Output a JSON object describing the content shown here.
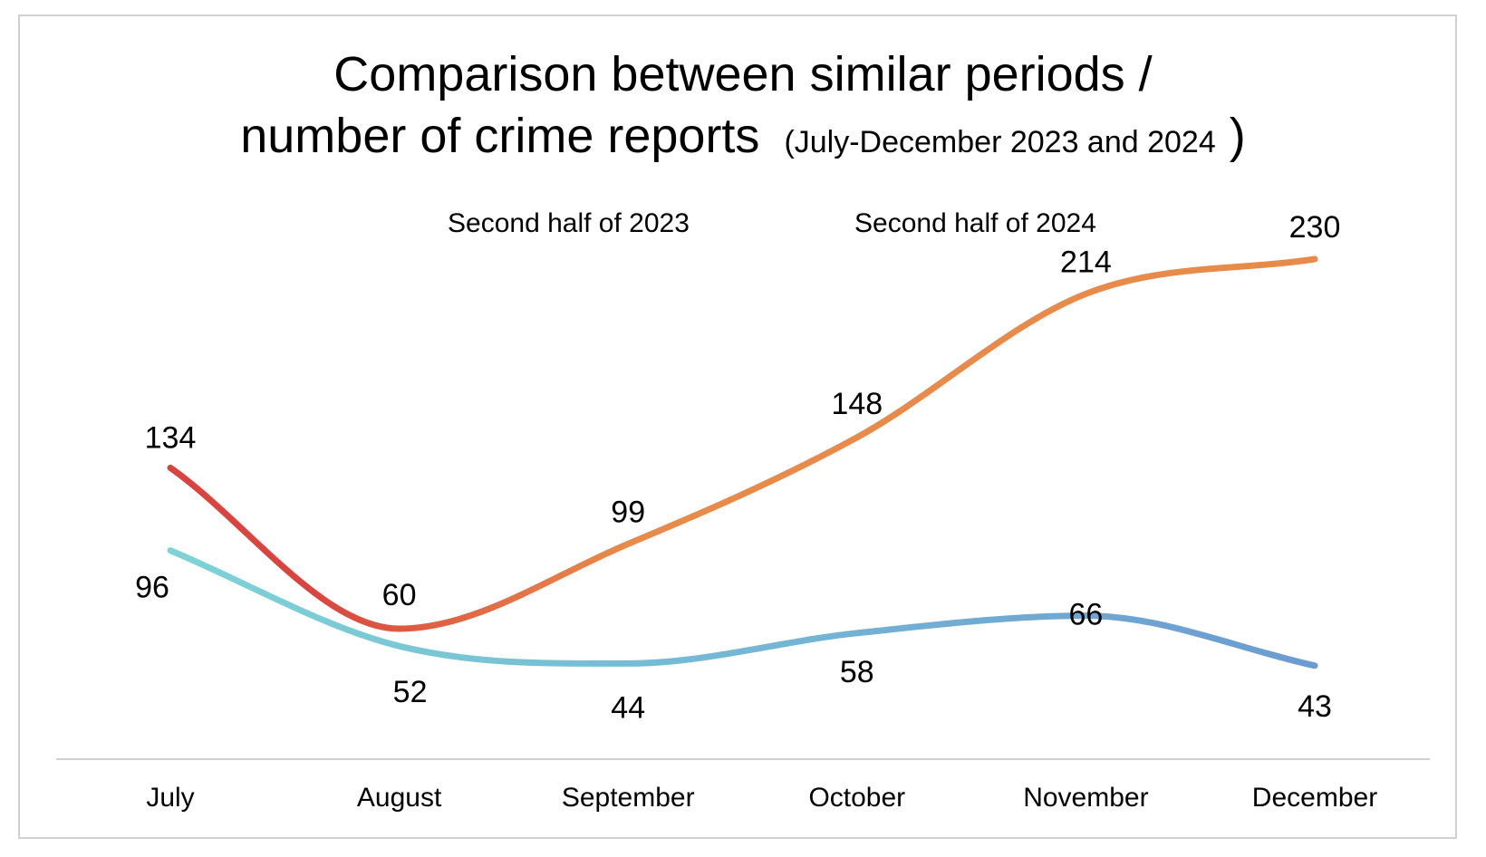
{
  "chart_data": {
    "type": "line",
    "title_line1": "Comparison between similar periods /",
    "title_line2_main": "number of crime reports",
    "title_line2_sub": "(July-December 2023 and 2024",
    "title_line2_close": ")",
    "categories": [
      "July",
      "August",
      "September",
      "October",
      "November",
      "December"
    ],
    "series": [
      {
        "name": "Second half of 2023",
        "values": [
          96,
          52,
          44,
          58,
          66,
          43
        ],
        "color_start": "#7dd3d6",
        "color_end": "#6b9bd1"
      },
      {
        "name": "Second half of 2024",
        "values": [
          134,
          60,
          99,
          148,
          214,
          230
        ],
        "color_start": "#d9443f",
        "color_end": "#e88b4a"
      }
    ],
    "smooth": true,
    "grid": false,
    "legend_position": "top-center",
    "ylim": [
      0,
      270
    ]
  }
}
